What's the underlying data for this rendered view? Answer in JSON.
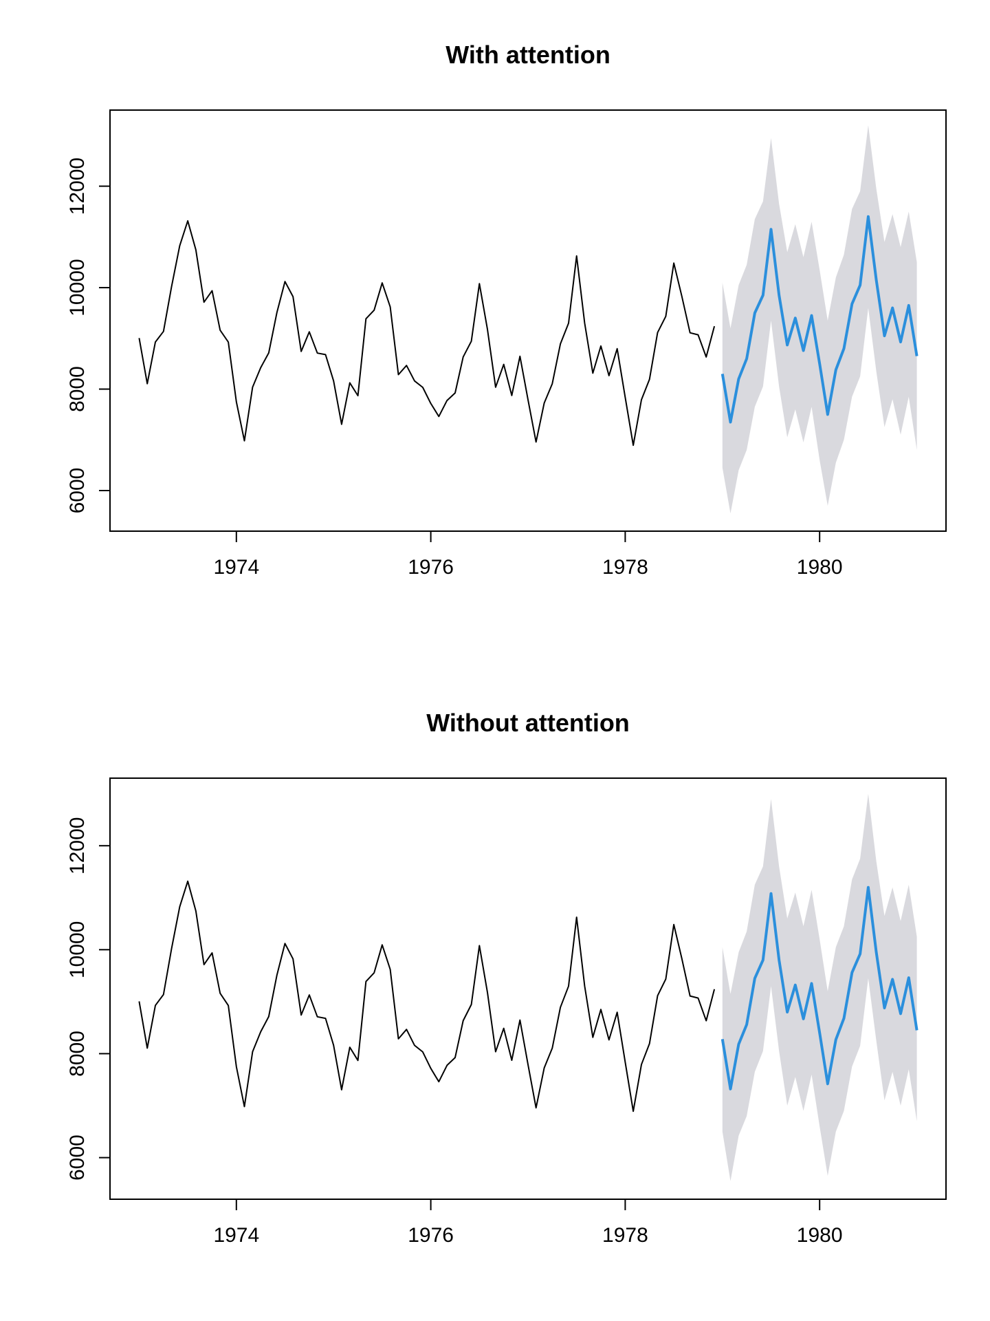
{
  "colors": {
    "observed": "#000000",
    "forecast": "#2b8fdc",
    "interval": "#d9d9de"
  },
  "chart_data": [
    {
      "type": "line",
      "title": "With attention",
      "xlabel": "",
      "ylabel": "",
      "xlim": [
        1972.7,
        1981.3
      ],
      "ylim": [
        5200,
        13500
      ],
      "xticks": [
        1974,
        1976,
        1978,
        1980
      ],
      "yticks": [
        6000,
        8000,
        10000,
        12000
      ],
      "grid": false,
      "series": [
        {
          "x": [
            1973.0,
            1973.083,
            1973.167,
            1973.25,
            1973.333,
            1973.417,
            1973.5,
            1973.583,
            1973.667,
            1973.75,
            1973.833,
            1973.917,
            1974.0,
            1974.083,
            1974.167,
            1974.25,
            1974.333,
            1974.417,
            1974.5,
            1974.583,
            1974.667,
            1974.75,
            1974.833,
            1974.917,
            1975.0,
            1975.083,
            1975.167,
            1975.25,
            1975.333,
            1975.417,
            1975.5,
            1975.583,
            1975.667,
            1975.75,
            1975.833,
            1975.917,
            1976.0,
            1976.083,
            1976.167,
            1976.25,
            1976.333,
            1976.417,
            1976.5,
            1976.583,
            1976.667,
            1976.75,
            1976.833,
            1976.917,
            1977.0,
            1977.083,
            1977.167,
            1977.25,
            1977.333,
            1977.417,
            1977.5,
            1977.583,
            1977.667,
            1977.75,
            1977.833,
            1977.917,
            1978.0,
            1978.083,
            1978.167,
            1978.25,
            1978.333,
            1978.417,
            1978.5,
            1978.583,
            1978.667,
            1978.75,
            1978.833,
            1978.917
          ],
          "values": [
            9007,
            8106,
            8928,
            9137,
            10017,
            10826,
            11317,
            10744,
            9713,
            9938,
            9161,
            8927,
            7750,
            6981,
            8038,
            8422,
            8714,
            9512,
            10120,
            9823,
            8743,
            9129,
            8710,
            8680,
            8162,
            7306,
            8124,
            7870,
            9387,
            9556,
            10093,
            9620,
            8285,
            8466,
            8160,
            8034,
            7717,
            7461,
            7776,
            7925,
            8634,
            8945,
            10078,
            9179,
            8037,
            8488,
            7874,
            8647,
            7792,
            6957,
            7726,
            8106,
            8890,
            9299,
            10625,
            9302,
            8314,
            8850,
            8265,
            8796,
            7836,
            6892,
            7791,
            8192,
            9115,
            9434,
            10484,
            9827,
            9110,
            9070,
            8633,
            9240
          ]
        },
        {
          "x": [
            1979.0,
            1979.083,
            1979.167,
            1979.25,
            1979.333,
            1979.417,
            1979.5,
            1979.583,
            1979.667,
            1979.75,
            1979.833,
            1979.917,
            1980.0,
            1980.083,
            1980.167,
            1980.25,
            1980.333,
            1980.417,
            1980.5,
            1980.583,
            1980.667,
            1980.75,
            1980.833,
            1980.917,
            1981.0
          ],
          "values": [
            8300,
            7350,
            8200,
            8600,
            9500,
            9850,
            11150,
            9850,
            8870,
            9400,
            8760,
            9450,
            8500,
            7500,
            8380,
            8800,
            9680,
            10050,
            11400,
            10150,
            9050,
            9600,
            8930,
            9650,
            8650
          ],
          "lower": [
            6450,
            5550,
            6400,
            6800,
            7650,
            8050,
            9350,
            8050,
            7050,
            7600,
            6950,
            7650,
            6600,
            5700,
            6550,
            7000,
            7850,
            8250,
            9600,
            8350,
            7250,
            7800,
            7100,
            7850,
            6800
          ],
          "upper": [
            10100,
            9200,
            10050,
            10450,
            11350,
            11700,
            12950,
            11650,
            10700,
            11250,
            10600,
            11300,
            10350,
            9350,
            10200,
            10650,
            11550,
            11900,
            13200,
            11950,
            10900,
            11450,
            10800,
            11500,
            10500
          ]
        }
      ]
    },
    {
      "type": "line",
      "title": "Without attention",
      "xlabel": "",
      "ylabel": "",
      "xlim": [
        1972.7,
        1981.3
      ],
      "ylim": [
        5200,
        13300
      ],
      "xticks": [
        1974,
        1976,
        1978,
        1980
      ],
      "yticks": [
        6000,
        8000,
        10000,
        12000
      ],
      "grid": false,
      "series": [
        {
          "x": [
            1973.0,
            1973.083,
            1973.167,
            1973.25,
            1973.333,
            1973.417,
            1973.5,
            1973.583,
            1973.667,
            1973.75,
            1973.833,
            1973.917,
            1974.0,
            1974.083,
            1974.167,
            1974.25,
            1974.333,
            1974.417,
            1974.5,
            1974.583,
            1974.667,
            1974.75,
            1974.833,
            1974.917,
            1975.0,
            1975.083,
            1975.167,
            1975.25,
            1975.333,
            1975.417,
            1975.5,
            1975.583,
            1975.667,
            1975.75,
            1975.833,
            1975.917,
            1976.0,
            1976.083,
            1976.167,
            1976.25,
            1976.333,
            1976.417,
            1976.5,
            1976.583,
            1976.667,
            1976.75,
            1976.833,
            1976.917,
            1977.0,
            1977.083,
            1977.167,
            1977.25,
            1977.333,
            1977.417,
            1977.5,
            1977.583,
            1977.667,
            1977.75,
            1977.833,
            1977.917,
            1978.0,
            1978.083,
            1978.167,
            1978.25,
            1978.333,
            1978.417,
            1978.5,
            1978.583,
            1978.667,
            1978.75,
            1978.833,
            1978.917
          ],
          "values": [
            9007,
            8106,
            8928,
            9137,
            10017,
            10826,
            11317,
            10744,
            9713,
            9938,
            9161,
            8927,
            7750,
            6981,
            8038,
            8422,
            8714,
            9512,
            10120,
            9823,
            8743,
            9129,
            8710,
            8680,
            8162,
            7306,
            8124,
            7870,
            9387,
            9556,
            10093,
            9620,
            8285,
            8466,
            8160,
            8034,
            7717,
            7461,
            7776,
            7925,
            8634,
            8945,
            10078,
            9179,
            8037,
            8488,
            7874,
            8647,
            7792,
            6957,
            7726,
            8106,
            8890,
            9299,
            10625,
            9302,
            8314,
            8850,
            8265,
            8796,
            7836,
            6892,
            7791,
            8192,
            9115,
            9434,
            10484,
            9827,
            9110,
            9070,
            8633,
            9240
          ]
        },
        {
          "x": [
            1979.0,
            1979.083,
            1979.167,
            1979.25,
            1979.333,
            1979.417,
            1979.5,
            1979.583,
            1979.667,
            1979.75,
            1979.833,
            1979.917,
            1980.0,
            1980.083,
            1980.167,
            1980.25,
            1980.333,
            1980.417,
            1980.5,
            1980.583,
            1980.667,
            1980.75,
            1980.833,
            1980.917,
            1981.0
          ],
          "values": [
            8280,
            7320,
            8180,
            8560,
            9450,
            9800,
            11080,
            9800,
            8800,
            9320,
            8670,
            9350,
            8400,
            7420,
            8270,
            8680,
            9560,
            9920,
            11200,
            9950,
            8880,
            9430,
            8770,
            9460,
            8450
          ],
          "lower": [
            6500,
            5550,
            6420,
            6800,
            7650,
            8050,
            9300,
            8050,
            7000,
            7550,
            6900,
            7600,
            6600,
            5650,
            6500,
            6900,
            7750,
            8150,
            9450,
            8250,
            7100,
            7650,
            7000,
            7700,
            6700
          ],
          "upper": [
            10050,
            9150,
            9950,
            10350,
            11250,
            11600,
            12900,
            11600,
            10600,
            11100,
            10450,
            11150,
            10200,
            9200,
            10050,
            10450,
            11350,
            11750,
            13000,
            11700,
            10650,
            11200,
            10550,
            11250,
            10250
          ]
        }
      ]
    }
  ]
}
